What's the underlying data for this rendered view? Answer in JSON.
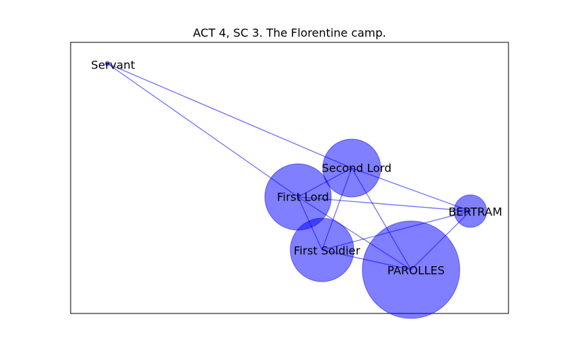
{
  "title": "ACT 4, SC 3. The Florentine camp.",
  "colors": {
    "node": "#0000ff",
    "edge": "#0000ff",
    "frame": "#000000"
  },
  "nodes": [
    {
      "id": "servant",
      "label": "Servant"
    },
    {
      "id": "second-lord",
      "label": "Second Lord"
    },
    {
      "id": "first-lord",
      "label": "First Lord"
    },
    {
      "id": "bertram",
      "label": "BERTRAM"
    },
    {
      "id": "first-soldier",
      "label": "First Soldier"
    },
    {
      "id": "parolles",
      "label": "PAROLLES"
    }
  ],
  "edges": [
    [
      "servant",
      "first-lord"
    ],
    [
      "servant",
      "second-lord"
    ],
    [
      "second-lord",
      "bertram"
    ],
    [
      "second-lord",
      "first-lord"
    ],
    [
      "second-lord",
      "first-soldier"
    ],
    [
      "second-lord",
      "parolles"
    ],
    [
      "first-lord",
      "bertram"
    ],
    [
      "first-lord",
      "first-soldier"
    ],
    [
      "first-lord",
      "parolles"
    ],
    [
      "bertram",
      "first-soldier"
    ],
    [
      "bertram",
      "parolles"
    ],
    [
      "first-soldier",
      "parolles"
    ]
  ]
}
